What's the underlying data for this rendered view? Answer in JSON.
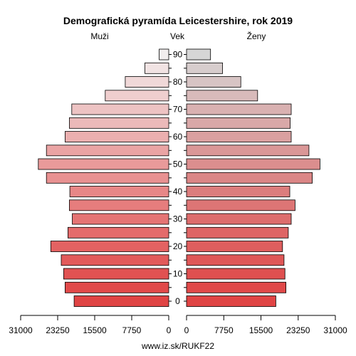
{
  "chart_data": {
    "type": "bar",
    "title": "Demografická pyramída Leicestershire, rok 2019",
    "left_label": "Muži",
    "center_label": "Vek",
    "right_label": "Ženy",
    "footer": "www.iz.sk/RUKF22",
    "xlim": [
      0,
      31000
    ],
    "x_ticks_left": [
      "31000",
      "23250",
      "15500",
      "7750",
      "0"
    ],
    "x_ticks_right": [
      "0",
      "7750",
      "15500",
      "23250",
      "31000"
    ],
    "x_tick_values": [
      31000,
      23250,
      15500,
      7750,
      0
    ],
    "age_labels": [
      "0",
      "10",
      "20",
      "30",
      "40",
      "50",
      "60",
      "70",
      "80",
      "90"
    ],
    "age_label_indices": [
      0,
      2,
      4,
      6,
      8,
      10,
      12,
      14,
      16,
      18
    ],
    "age_groups": [
      "0-4",
      "5-9",
      "10-14",
      "15-19",
      "20-24",
      "25-29",
      "30-34",
      "35-39",
      "40-44",
      "45-49",
      "50-54",
      "55-59",
      "60-64",
      "65-69",
      "70-74",
      "75-79",
      "80-84",
      "85-89",
      "90+"
    ],
    "series": [
      {
        "name": "Muži",
        "values": [
          19800,
          21700,
          22000,
          22500,
          24700,
          21100,
          20200,
          20800,
          20700,
          25600,
          27300,
          25600,
          21700,
          20800,
          20300,
          13300,
          9100,
          5000,
          2000
        ]
      },
      {
        "name": "Ženy",
        "values": [
          18600,
          20700,
          20500,
          20300,
          20000,
          21200,
          21800,
          22600,
          21500,
          26200,
          27800,
          25500,
          21800,
          21600,
          21800,
          14800,
          11300,
          7500,
          5000
        ]
      }
    ]
  }
}
